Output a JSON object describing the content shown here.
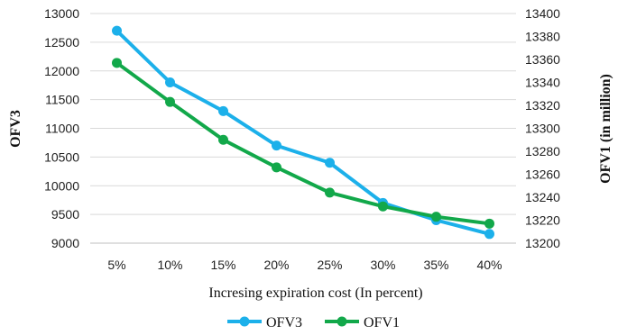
{
  "chart_data": {
    "type": "line",
    "categories": [
      "5%",
      "10%",
      "15%",
      "20%",
      "25%",
      "30%",
      "35%",
      "40%"
    ],
    "xlabel": "Incresing expiration cost (In percent)",
    "ylabel_left": "OFV3",
    "ylabel_right": "OFV1 (in million)",
    "y_left": {
      "lim": [
        9000,
        13000
      ],
      "ticks": [
        "9000",
        "9500",
        "10000",
        "10500",
        "11000",
        "11500",
        "12000",
        "12500",
        "13000"
      ]
    },
    "y_right": {
      "lim": [
        13200,
        13400
      ],
      "ticks": [
        "13200",
        "13220",
        "13240",
        "13260",
        "13280",
        "13300",
        "13320",
        "13340",
        "13360",
        "13380",
        "13400"
      ]
    },
    "grid": true,
    "legend_position": "bottom",
    "series": [
      {
        "name": "OFV3",
        "axis": "left",
        "color": "#1cb0ea",
        "values": [
          12700,
          11800,
          11300,
          10700,
          10400,
          9700,
          9400,
          9160
        ]
      },
      {
        "name": "OFV1",
        "axis": "right",
        "color": "#12a84a",
        "values": [
          13357,
          13323,
          13290,
          13266,
          13244,
          13232,
          13223,
          13217
        ]
      }
    ]
  }
}
